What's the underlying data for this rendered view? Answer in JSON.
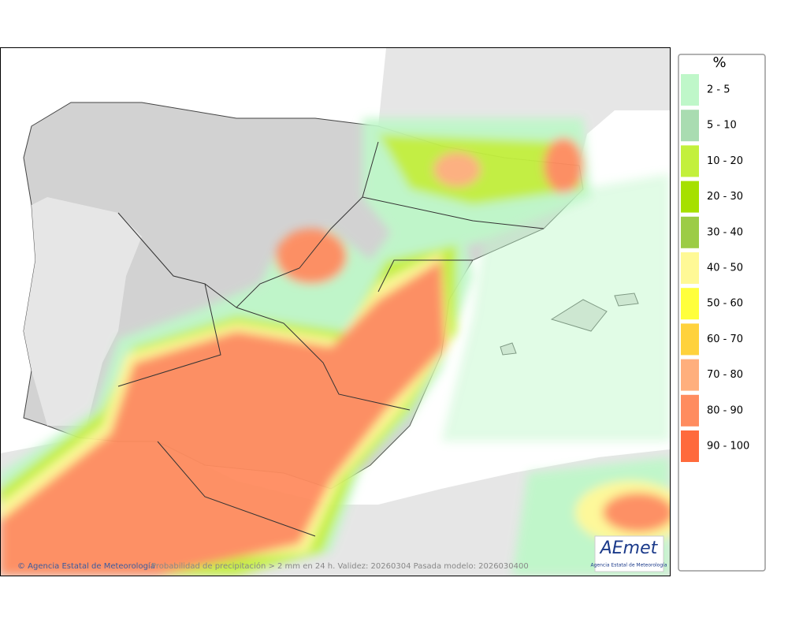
{
  "map": {
    "caption": "Probabilidad de precipitación > 2 mm en 24 h. Validez: 20260304 Pasada modelo: 2026030400",
    "credit": "© Agencia Estatal de Meteorología",
    "logo": {
      "name": "AEmet",
      "subtitle": "Agencia Estatal de Meteorología"
    }
  },
  "legend": {
    "title": "%",
    "entries": [
      {
        "label": "2 - 5",
        "color": "#bff7c9"
      },
      {
        "label": "5 - 10",
        "color": "#a9dcb1"
      },
      {
        "label": "10 - 20",
        "color": "#c3f03c"
      },
      {
        "label": "20 - 30",
        "color": "#a6e000"
      },
      {
        "label": "30 - 40",
        "color": "#9ccc46"
      },
      {
        "label": "40 - 50",
        "color": "#fff996"
      },
      {
        "label": "50 - 60",
        "color": "#ffff3c"
      },
      {
        "label": "60 - 70",
        "color": "#ffd23c"
      },
      {
        "label": "70 - 80",
        "color": "#ffaf7d"
      },
      {
        "label": "80 - 90",
        "color": "#ff8c5f"
      },
      {
        "label": "90 - 100",
        "color": "#ff6a3c"
      }
    ]
  }
}
